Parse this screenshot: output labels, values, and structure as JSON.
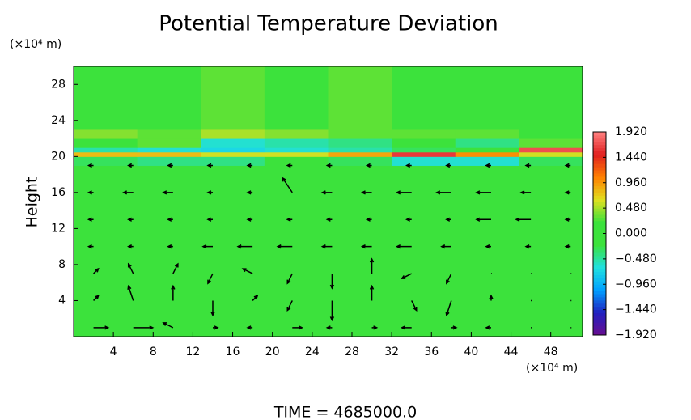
{
  "chart_data": {
    "type": "heatmap_vectors",
    "title": "Potential Temperature Deviation",
    "y_label": "Height",
    "y_unit": "(×10⁴ m)",
    "x_unit": "(×10⁴ m)",
    "time_label": "TIME = 4685000.0",
    "xlim": [
      0,
      51.2
    ],
    "ylim": [
      0,
      30
    ],
    "xticks": [
      4,
      8,
      12,
      16,
      20,
      24,
      28,
      32,
      36,
      40,
      44,
      48
    ],
    "yticks": [
      4,
      8,
      12,
      16,
      20,
      24,
      28
    ],
    "zlim": [
      -1.92,
      1.92
    ],
    "colors": [
      "#6a0d8f",
      "#2020c0",
      "#00a0ff",
      "#20e0e0",
      "#3ce23c",
      "#3ce23c",
      "#e0e020",
      "#ff8000",
      "#e02020",
      "#ff8080"
    ],
    "colorbar_ticks": [
      {
        "value": 1.92,
        "label": "1.920"
      },
      {
        "value": 1.44,
        "label": "1.440"
      },
      {
        "value": 0.96,
        "label": "0.960"
      },
      {
        "value": 0.48,
        "label": "0.480"
      },
      {
        "value": 0,
        "label": "0.000"
      },
      {
        "value": -0.48,
        "label": "−0.480"
      },
      {
        "value": -0.96,
        "label": "−0.960"
      },
      {
        "value": -1.44,
        "label": "−1.440"
      },
      {
        "value": -1.92,
        "label": "−1.920"
      }
    ],
    "xbins": [
      0,
      6.4,
      12.8,
      19.2,
      25.6,
      32,
      38.4,
      44.8,
      51.2
    ],
    "ybins": [
      0,
      19,
      20,
      20.5,
      21,
      22,
      23,
      30
    ],
    "z": [
      [
        0,
        0,
        0,
        0,
        0,
        0,
        0,
        0
      ],
      [
        -0.3,
        -0.4,
        -0.4,
        -0.2,
        -0.3,
        -0.6,
        -0.6,
        -0.3
      ],
      [
        0.8,
        0.8,
        0.6,
        0.6,
        0.9,
        1.6,
        1.0,
        0.6
      ],
      [
        -0.5,
        -0.6,
        -0.7,
        -0.6,
        -0.5,
        -0.3,
        -0.2,
        1.7
      ],
      [
        0.2,
        0.3,
        -0.6,
        -0.5,
        -0.4,
        -0.2,
        -0.4,
        0.3
      ],
      [
        0.4,
        0.3,
        0.5,
        0.4,
        0.3,
        0.3,
        0.3,
        0.2
      ],
      [
        0.1,
        0.2,
        0.3,
        0.2,
        0.3,
        0.2,
        0.1,
        0.1
      ]
    ],
    "vectors": {
      "x": [
        2,
        6,
        10,
        14,
        18,
        22,
        26,
        30,
        34,
        38,
        42,
        46,
        50
      ],
      "y": [
        1,
        4,
        7,
        10,
        13,
        16,
        19
      ],
      "u": [
        [
          3,
          4,
          -2,
          1,
          -1,
          2,
          -1,
          1,
          -2,
          1,
          -1,
          0,
          0
        ],
        [
          1,
          -1,
          0,
          0,
          1,
          -1,
          0,
          0,
          1,
          -1,
          0,
          0,
          0
        ],
        [
          1,
          -1,
          1,
          -1,
          -2,
          -1,
          0,
          0,
          -2,
          -1,
          0,
          0,
          0
        ],
        [
          -1,
          -1,
          -1,
          -2,
          -3,
          -3,
          -2,
          -2,
          -3,
          -2,
          -1,
          -1,
          -1
        ],
        [
          -1,
          -1,
          -1,
          -1,
          -1,
          -1,
          -1,
          -1,
          -1,
          -1,
          -3,
          -3,
          -1
        ],
        [
          -1,
          -2,
          -2,
          -1,
          -1,
          -2,
          -2,
          -2,
          -3,
          -3,
          -3,
          -2,
          -1
        ],
        [
          -1,
          -1,
          -1,
          -1,
          -1,
          -1,
          -1,
          -1,
          -1,
          -1,
          -1,
          -1,
          -1
        ]
      ],
      "v": [
        [
          0,
          0,
          1,
          0,
          0,
          0,
          0,
          0,
          0,
          0,
          0,
          0,
          0
        ],
        [
          1,
          3,
          3,
          -3,
          1,
          -2,
          -4,
          3,
          -2,
          -3,
          1,
          0,
          0
        ],
        [
          1,
          2,
          2,
          -2,
          1,
          -2,
          -3,
          3,
          -1,
          -2,
          0,
          0,
          0
        ],
        [
          0,
          0,
          0,
          0,
          0,
          0,
          0,
          0,
          0,
          0,
          0,
          0,
          0
        ],
        [
          0,
          0,
          0,
          0,
          0,
          0,
          0,
          0,
          0,
          0,
          0,
          0,
          0
        ],
        [
          0,
          0,
          0,
          0,
          0,
          3,
          0,
          0,
          0,
          0,
          0,
          0,
          0
        ],
        [
          0,
          0,
          0,
          0,
          0,
          0,
          0,
          0,
          0,
          0,
          0,
          0,
          0
        ]
      ]
    }
  }
}
